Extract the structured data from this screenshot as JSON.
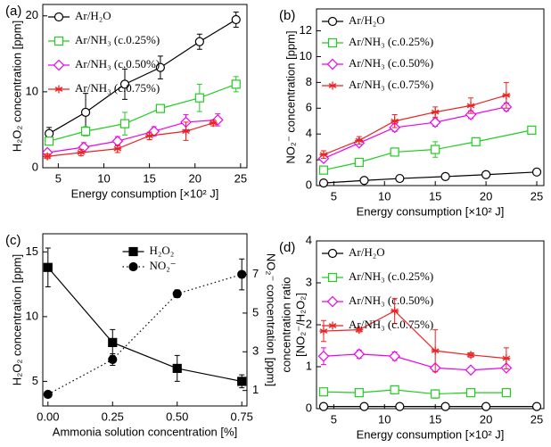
{
  "chart_data": [
    {
      "type": "line",
      "title": "(a)",
      "xlabel": "Energy consumption [×10² J]",
      "ylabel": "H₂O₂ concentration [ppm]",
      "xlim": [
        3.3,
        25.7
      ],
      "ylim": [
        0,
        21.5
      ],
      "xticks": [
        5,
        10,
        15,
        20,
        25
      ],
      "yticks": [
        0,
        10,
        20
      ],
      "legend": "upper left",
      "series": [
        {
          "name": "Ar/H₂O",
          "color": "#000000",
          "marker": "circle",
          "x": [
            4,
            8,
            12.3,
            16.2,
            20.5,
            24.5
          ],
          "values": [
            4.5,
            7.3,
            11,
            13.2,
            16.6,
            19.5
          ],
          "errors": [
            0.8,
            2.5,
            2,
            1.5,
            1,
            1
          ]
        },
        {
          "name": "Ar/NH₃ (c.0.25%)",
          "color": "#22cc22",
          "marker": "square",
          "x": [
            4,
            8,
            12.3,
            16.2,
            20.5,
            24.5
          ],
          "values": [
            3.5,
            4.8,
            5.8,
            7.8,
            9.2,
            11
          ],
          "errors": [
            0.5,
            0.6,
            1.5,
            0.5,
            1.8,
            1
          ]
        },
        {
          "name": "Ar/NH₃ (c.0.50%)",
          "color": "#ee00ee",
          "marker": "diamond",
          "x": [
            3.8,
            7.8,
            11.5,
            15.5,
            19,
            22.5
          ],
          "values": [
            2,
            2.7,
            3.5,
            4.8,
            6,
            6.3
          ],
          "errors": [
            0.3,
            0.6,
            0.6,
            0.6,
            1,
            0.8
          ]
        },
        {
          "name": "Ar/NH₃ (c.0.75%)",
          "color": "#ee2222",
          "marker": "star",
          "x": [
            3.8,
            7.5,
            11.5,
            15,
            19,
            22
          ],
          "values": [
            1.5,
            2,
            2.5,
            4.2,
            4.8,
            5.9
          ],
          "errors": [
            0.3,
            0.4,
            0.5,
            0.5,
            1.2,
            0.4
          ]
        }
      ]
    },
    {
      "type": "line",
      "title": "(b)",
      "xlabel": "Energy consumption [×10² J]",
      "ylabel": "NO₂⁻ concentration [ppm]",
      "xlim": [
        3.3,
        25.7
      ],
      "ylim": [
        0,
        13.7
      ],
      "xticks": [
        5,
        10,
        15,
        20,
        25
      ],
      "yticks": [
        0,
        2,
        4,
        6,
        8,
        10,
        12
      ],
      "legend": "upper left",
      "series": [
        {
          "name": "Ar/H₂O",
          "color": "#000000",
          "marker": "circle",
          "x": [
            4,
            8,
            11.5,
            16,
            20,
            25
          ],
          "values": [
            0.2,
            0.4,
            0.55,
            0.7,
            0.85,
            1.05
          ],
          "errors": [
            0.05,
            0.05,
            0.05,
            0.05,
            0.05,
            0.1
          ]
        },
        {
          "name": "Ar/NH₃ (c.0.25%)",
          "color": "#22cc22",
          "marker": "square",
          "x": [
            4,
            7.5,
            11,
            15,
            19,
            24.5
          ],
          "values": [
            1.2,
            1.8,
            2.6,
            2.8,
            3.4,
            4.3
          ],
          "errors": [
            0.15,
            0.2,
            0.2,
            0.6,
            0.2,
            0.3
          ]
        },
        {
          "name": "Ar/NH₃ (c.0.50%)",
          "color": "#ee00ee",
          "marker": "diamond",
          "x": [
            4,
            7.5,
            11,
            15,
            18.5,
            22
          ],
          "values": [
            2.1,
            3.3,
            4.5,
            4.9,
            5.5,
            6.1
          ],
          "errors": [
            0.2,
            0.2,
            0.3,
            0.3,
            0.3,
            0.3
          ]
        },
        {
          "name": "Ar/NH₃ (c.0.75%)",
          "color": "#ee2222",
          "marker": "star",
          "x": [
            4,
            7.5,
            11,
            15,
            18.5,
            22
          ],
          "values": [
            2.4,
            3.5,
            5,
            5.7,
            6.2,
            7
          ],
          "errors": [
            0.3,
            0.3,
            0.5,
            0.4,
            0.6,
            1
          ]
        }
      ]
    },
    {
      "type": "line",
      "title": "(c)",
      "xlabel": "Ammonia solution concentration [%]",
      "ylabel": "H₂O₂ concentration [ppm]",
      "y2label": "NO₂⁻ concentration [ppm]",
      "xlim": [
        -0.02,
        0.77
      ],
      "ylim": [
        3.1,
        16.4
      ],
      "y2lim": [
        0.2,
        9.1
      ],
      "xticks": [
        {
          "value": 0,
          "label": "0.00"
        },
        {
          "value": 0.25,
          "label": "0.25"
        },
        {
          "value": 0.5,
          "label": "0.50"
        },
        {
          "value": 0.75,
          "label": "0.75"
        }
      ],
      "yticks": [
        5,
        10,
        15
      ],
      "y2ticks": [
        1,
        3,
        5,
        7
      ],
      "legend": "upper center",
      "series": [
        {
          "name": "H₂O₂",
          "color": "#000000",
          "marker": "filled-square",
          "linestyle": "solid",
          "x": [
            0,
            0.25,
            0.5,
            0.75
          ],
          "values": [
            13.8,
            8,
            6,
            5
          ],
          "errors": [
            1.5,
            1,
            1,
            0.5
          ]
        },
        {
          "name": "NO₂⁻",
          "color": "#000000",
          "marker": "filled-circle",
          "linestyle": "dotted",
          "axis": "y2",
          "x": [
            0,
            0.25,
            0.5,
            0.75
          ],
          "values": [
            0.8,
            2.6,
            6,
            7
          ],
          "errors": [
            0.1,
            0.3,
            0.2,
            0.8
          ]
        }
      ]
    },
    {
      "type": "line",
      "title": "(d)",
      "xlabel": "Energy consumption [×10² J]",
      "ylabel": [
        "concentration ratio",
        "[NO₂⁻/H₂O₂]"
      ],
      "xlim": [
        3.3,
        25.7
      ],
      "ylim": [
        0,
        4
      ],
      "xticks": [
        5,
        10,
        15,
        20,
        25
      ],
      "yticks": [
        0,
        1,
        2,
        3,
        4
      ],
      "legend": "upper left",
      "series": [
        {
          "name": "Ar/H₂O",
          "color": "#000000",
          "marker": "circle",
          "x": [
            4,
            8,
            11.5,
            16,
            20,
            25
          ],
          "values": [
            0.05,
            0.05,
            0.05,
            0.05,
            0.05,
            0.05
          ]
        },
        {
          "name": "Ar/NH₃ (c.0.25%)",
          "color": "#22cc22",
          "marker": "square",
          "x": [
            4,
            7.5,
            11,
            15,
            18.5,
            22
          ],
          "values": [
            0.4,
            0.38,
            0.45,
            0.35,
            0.38,
            0.38
          ],
          "errors": [
            0.04,
            0.03,
            0.05,
            0.1,
            0.03,
            0.03
          ]
        },
        {
          "name": "Ar/NH₃ (c.0.50%)",
          "color": "#ee00ee",
          "marker": "diamond",
          "x": [
            4,
            7.5,
            11,
            15,
            18.5,
            22
          ],
          "values": [
            1.25,
            1.3,
            1.25,
            0.97,
            0.92,
            0.97
          ],
          "errors": [
            0.2,
            0.1,
            0.1,
            0.05,
            0.05,
            0.05
          ]
        },
        {
          "name": "Ar/NH₃ (c.0.75%)",
          "color": "#ee2222",
          "marker": "star",
          "x": [
            4,
            7.5,
            11,
            15,
            18.5,
            22
          ],
          "values": [
            1.85,
            1.88,
            2.33,
            1.38,
            1.28,
            1.2
          ],
          "errors": [
            0.25,
            0.05,
            0.3,
            0.5,
            0.05,
            0.25
          ]
        }
      ]
    }
  ]
}
